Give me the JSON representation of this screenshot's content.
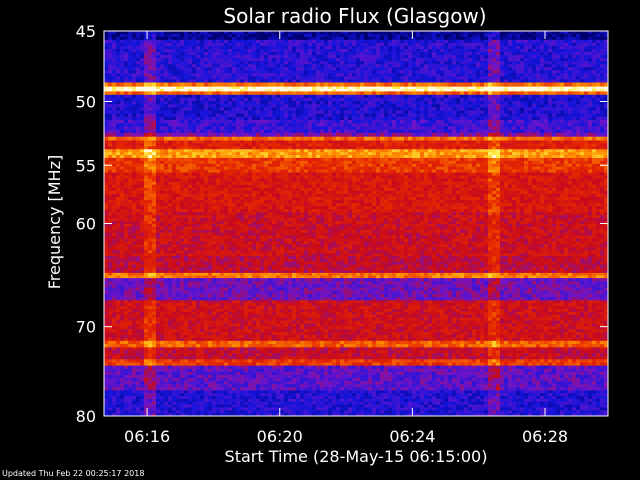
{
  "chart_data": {
    "type": "heatmap",
    "title": "Solar radio Flux (Glasgow)",
    "xlabel": "Start Time (28-May-15 06:15:00)",
    "ylabel": "Frequency [MHz]",
    "x_ticks": [
      "06:16",
      "06:20",
      "06:24",
      "06:28"
    ],
    "x_tick_minutes": [
      1,
      5,
      9,
      13
    ],
    "x_range_minutes": [
      -0.3,
      14.9
    ],
    "y_ticks": [
      45,
      50,
      55,
      60,
      70,
      80
    ],
    "y_range_mhz": [
      45,
      80
    ],
    "y_scale": "log",
    "colormap": "blue-red-yellow-white",
    "bands": [
      {
        "from_mhz": 45.0,
        "to_mhz": 45.6,
        "level": 0.05
      },
      {
        "from_mhz": 45.6,
        "to_mhz": 48.6,
        "level": 0.18
      },
      {
        "from_mhz": 48.6,
        "to_mhz": 48.9,
        "level": 0.72
      },
      {
        "from_mhz": 48.9,
        "to_mhz": 49.25,
        "level": 1.0
      },
      {
        "from_mhz": 49.25,
        "to_mhz": 49.5,
        "level": 0.7
      },
      {
        "from_mhz": 49.5,
        "to_mhz": 51.4,
        "level": 0.16
      },
      {
        "from_mhz": 51.4,
        "to_mhz": 52.4,
        "level": 0.22
      },
      {
        "from_mhz": 52.4,
        "to_mhz": 52.7,
        "level": 0.32
      },
      {
        "from_mhz": 52.7,
        "to_mhz": 53.0,
        "level": 0.72
      },
      {
        "from_mhz": 53.0,
        "to_mhz": 53.7,
        "level": 0.55
      },
      {
        "from_mhz": 53.7,
        "to_mhz": 54.4,
        "level": 0.8
      },
      {
        "from_mhz": 54.4,
        "to_mhz": 55.6,
        "level": 0.62
      },
      {
        "from_mhz": 55.6,
        "to_mhz": 59.0,
        "level": 0.52
      },
      {
        "from_mhz": 59.0,
        "to_mhz": 63.0,
        "level": 0.47
      },
      {
        "from_mhz": 63.0,
        "to_mhz": 64.6,
        "level": 0.44
      },
      {
        "from_mhz": 64.6,
        "to_mhz": 65.1,
        "level": 0.74
      },
      {
        "from_mhz": 65.1,
        "to_mhz": 67.3,
        "level": 0.3
      },
      {
        "from_mhz": 67.3,
        "to_mhz": 71.5,
        "level": 0.48
      },
      {
        "from_mhz": 71.5,
        "to_mhz": 72.2,
        "level": 0.7
      },
      {
        "from_mhz": 72.2,
        "to_mhz": 73.5,
        "level": 0.45
      },
      {
        "from_mhz": 73.5,
        "to_mhz": 74.2,
        "level": 0.62
      },
      {
        "from_mhz": 74.2,
        "to_mhz": 77.0,
        "level": 0.27
      },
      {
        "from_mhz": 77.0,
        "to_mhz": 80.0,
        "level": 0.17
      }
    ],
    "time_disturbances_minutes": [
      1.0,
      1.15,
      11.4,
      11.55
    ]
  },
  "footer": {
    "updated": "Updated Thu Feb 22 00:25:17 2018"
  }
}
